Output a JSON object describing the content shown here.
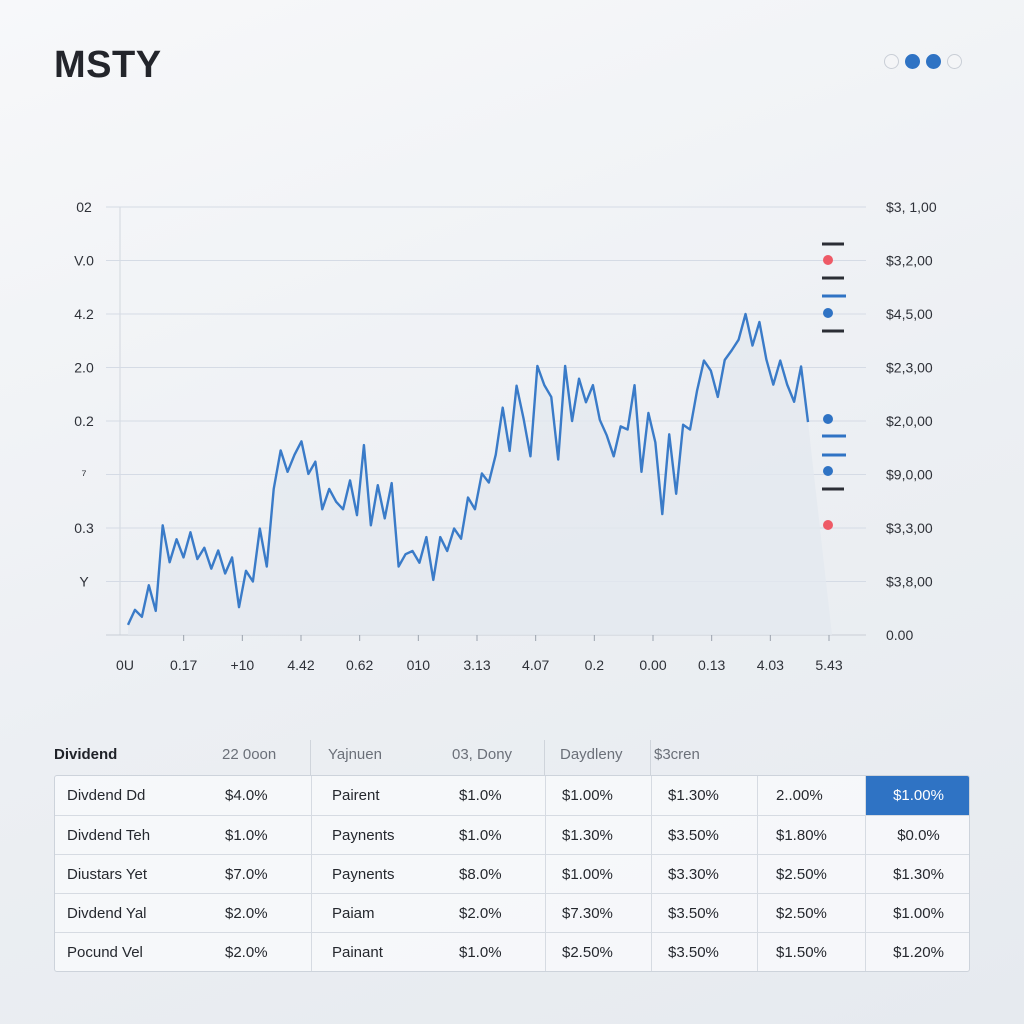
{
  "header": {
    "title": "MSTY",
    "pager_dots": [
      false,
      true,
      true,
      false
    ]
  },
  "colors": {
    "accent": "#2f73c4",
    "line": "#3a7bc8",
    "marker_red": "#ee5a66",
    "area": "#e3e8ef"
  },
  "chart_data": {
    "type": "line",
    "title": "",
    "xlabel": "",
    "ylabel": "",
    "grid": true,
    "left_tick_labels": [
      "02",
      "V.0",
      "4.2",
      "2.0",
      "0.2",
      "⁷",
      "0.3",
      "Y"
    ],
    "right_tick_labels": [
      "$3, 1,00",
      "$3,2,00",
      "$4,5,00",
      "$2,3,00",
      "$2,0,00",
      "$9,0,00",
      "$3,3,00",
      "$3,8,00",
      "0.00"
    ],
    "x_tick_labels": [
      "0U",
      "0.17",
      "+10",
      "4.42",
      "0.62",
      "010",
      "3.13",
      "4.07",
      "0.2",
      "0.00",
      "0.13",
      "4.03",
      "5.43"
    ],
    "x": [
      0,
      1,
      2,
      3,
      4,
      5,
      6,
      7,
      8,
      9,
      10,
      11,
      12,
      13,
      14,
      15,
      16,
      17,
      18,
      19,
      20,
      21,
      22,
      23,
      24,
      25,
      26,
      27,
      28,
      29,
      30,
      31,
      32,
      33,
      34,
      35,
      36,
      37,
      38,
      39,
      40,
      41,
      42,
      43,
      44,
      45,
      46,
      47,
      48,
      49,
      50,
      51,
      52,
      53,
      54,
      55,
      56,
      57,
      58,
      59,
      60,
      61,
      62,
      63,
      64,
      65,
      66,
      67,
      68,
      69,
      70,
      71,
      72,
      73,
      74,
      75,
      76,
      77,
      78,
      79,
      80,
      81,
      82,
      83,
      84,
      85,
      86,
      87,
      88,
      89,
      90,
      91,
      92,
      93,
      94,
      95,
      96,
      97,
      98
    ],
    "series": [
      {
        "values": [
          0.19,
          0.47,
          0.34,
          0.93,
          0.45,
          2.05,
          1.36,
          1.79,
          1.45,
          1.92,
          1.42,
          1.63,
          1.24,
          1.58,
          1.15,
          1.45,
          0.52,
          1.2,
          1.0,
          1.99,
          1.28,
          2.73,
          3.45,
          3.05,
          3.37,
          3.62,
          3.01,
          3.24,
          2.35,
          2.73,
          2.49,
          2.35,
          2.89,
          2.24,
          3.55,
          2.05,
          2.8,
          2.18,
          2.84,
          1.28,
          1.51,
          1.57,
          1.35,
          1.83,
          1.03,
          1.83,
          1.57,
          1.99,
          1.8,
          2.57,
          2.35,
          3.02,
          2.85,
          3.37,
          4.25,
          3.44,
          4.66,
          4.05,
          3.34,
          5.03,
          4.67,
          4.45,
          3.28,
          5.03,
          4.0,
          4.79,
          4.35,
          4.67,
          4.02,
          3.73,
          3.34,
          3.9,
          3.84,
          4.67,
          3.05,
          4.15,
          3.6,
          2.26,
          3.75,
          2.64,
          3.93,
          3.84,
          4.56,
          5.13,
          4.94,
          4.45,
          5.14,
          5.32,
          5.52,
          6.0,
          5.41,
          5.85,
          5.15,
          4.68,
          5.13,
          4.68,
          4.36,
          5.02,
          3.98
        ],
        "color": "#3a7bc8"
      }
    ],
    "right_markers": [
      "dash-dark",
      "dot-red",
      "dash-dark",
      "dash-blue",
      "dot-blue",
      "dash-dark",
      "dot-blue",
      "dash-blue",
      "dash-blue",
      "dot-blue",
      "dash-dark",
      "dot-red"
    ]
  },
  "table": {
    "header_labels": [
      "Dividend",
      "22 0oon",
      "Yajnuen",
      "03, Dony",
      "Daydleny",
      "$3cren"
    ],
    "rows": [
      [
        "Divdend Dd",
        "$4.0%",
        "Pairent",
        "$1.0%",
        "$1.00%",
        "$1.30%",
        "2..00%",
        "$1.00%"
      ],
      [
        "Divdend Teh",
        "$1.0%",
        "Paynents",
        "$1.0%",
        "$1.30%",
        "$3.50%",
        "$1.80%",
        "$0.0%"
      ],
      [
        "Diustars Yet",
        "$7.0%",
        "Paynents",
        "$8.0%",
        "$1.00%",
        "$3.30%",
        "$2.50%",
        "$1.30%"
      ],
      [
        "Divdend Yal",
        "$2.0%",
        "Paiam",
        "$2.0%",
        "$7.30%",
        "$3.50%",
        "$2.50%",
        "$1.00%"
      ],
      [
        "Pocund  Vel",
        "$2.0%",
        "Painant",
        "$1.0%",
        "$2.50%",
        "$3.50%",
        "$1.50%",
        "$1.20%"
      ]
    ],
    "highlighted_cell": {
      "row": 0,
      "col": 7
    }
  }
}
